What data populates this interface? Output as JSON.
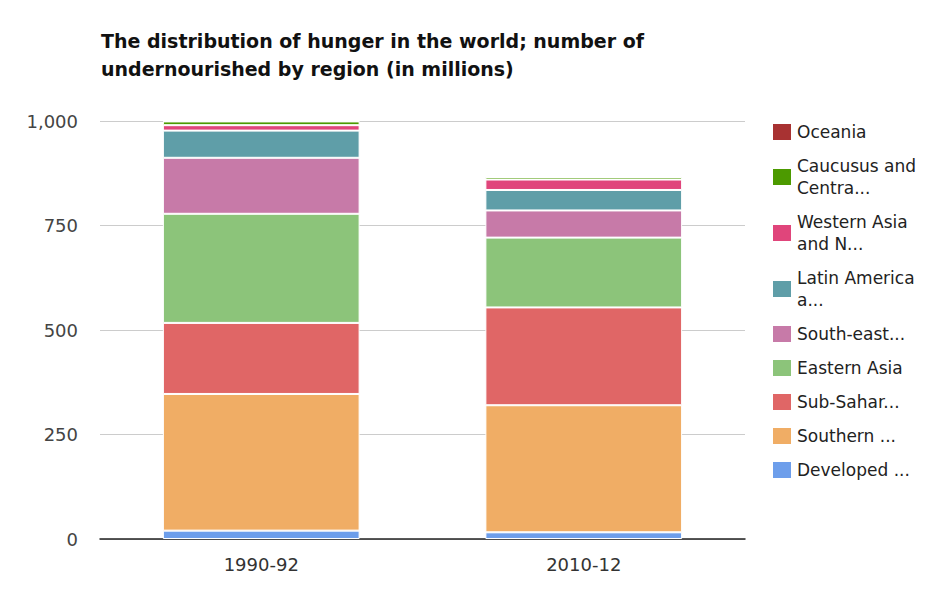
{
  "chart_data": {
    "type": "bar",
    "title": "The distribution of hunger in the world; number of\nundernourished by region (in millions)",
    "categories": [
      "1990-92",
      "2010-12"
    ],
    "stacked": true,
    "grid": true,
    "legend": "right",
    "ylim": [
      0,
      1000
    ],
    "yticks": [
      0,
      250,
      500,
      750,
      1000
    ],
    "series": [
      {
        "name": "Developed ...",
        "color": "#6d9eeb",
        "values": [
          20,
          16
        ]
      },
      {
        "name": "Southern ...",
        "color": "#f0ad65",
        "values": [
          327,
          304
        ]
      },
      {
        "name": "Sub-Sahar...",
        "color": "#e06666",
        "values": [
          170,
          234
        ]
      },
      {
        "name": "Eastern Asia",
        "color": "#8cc47a",
        "values": [
          261,
          167
        ]
      },
      {
        "name": "South-east...",
        "color": "#c77aa8",
        "values": [
          134,
          65
        ]
      },
      {
        "name": "Latin America a...",
        "color": "#5f9ea8",
        "values": [
          65,
          49
        ]
      },
      {
        "name": "Western Asia and N...",
        "color": "#e0457b",
        "values": [
          13,
          25
        ]
      },
      {
        "name": "Caucusus and Centra...",
        "color": "#4c9a00",
        "values": [
          9,
          6
        ]
      },
      {
        "name": "Oceania",
        "color": "#a83232",
        "values": [
          1,
          1
        ]
      }
    ]
  }
}
